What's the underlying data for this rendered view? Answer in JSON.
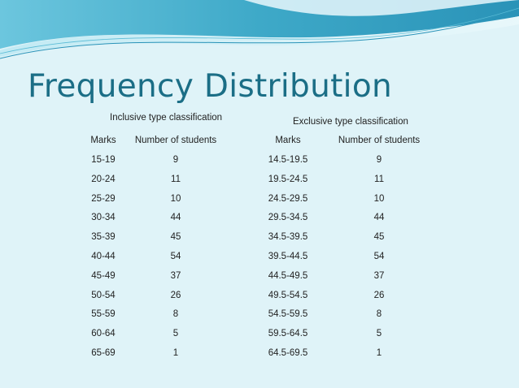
{
  "title": "Frequency Distribution",
  "colors": {
    "title": "#1b6e86",
    "background": "#dff3f8",
    "wave_dark": "#3aa9c9",
    "wave_light": "#8fd3e6"
  },
  "inclusive": {
    "caption": "Inclusive type classification",
    "headers": [
      "Marks",
      "Number of students"
    ],
    "rows": [
      [
        "15-19",
        "9"
      ],
      [
        "20-24",
        "11"
      ],
      [
        "25-29",
        "10"
      ],
      [
        "30-34",
        "44"
      ],
      [
        "35-39",
        "45"
      ],
      [
        "40-44",
        "54"
      ],
      [
        "45-49",
        "37"
      ],
      [
        "50-54",
        "26"
      ],
      [
        "55-59",
        "8"
      ],
      [
        "60-64",
        "5"
      ],
      [
        "65-69",
        "1"
      ]
    ]
  },
  "exclusive": {
    "caption": "Exclusive type classification",
    "headers": [
      "Marks",
      "Number of students"
    ],
    "rows": [
      [
        "14.5-19.5",
        "9"
      ],
      [
        "19.5-24.5",
        "11"
      ],
      [
        "24.5-29.5",
        "10"
      ],
      [
        "29.5-34.5",
        "44"
      ],
      [
        "34.5-39.5",
        "45"
      ],
      [
        "39.5-44.5",
        "54"
      ],
      [
        "44.5-49.5",
        "37"
      ],
      [
        "49.5-54.5",
        "26"
      ],
      [
        "54.5-59.5",
        "8"
      ],
      [
        "59.5-64.5",
        "5"
      ],
      [
        "64.5-69.5",
        "1"
      ]
    ]
  }
}
